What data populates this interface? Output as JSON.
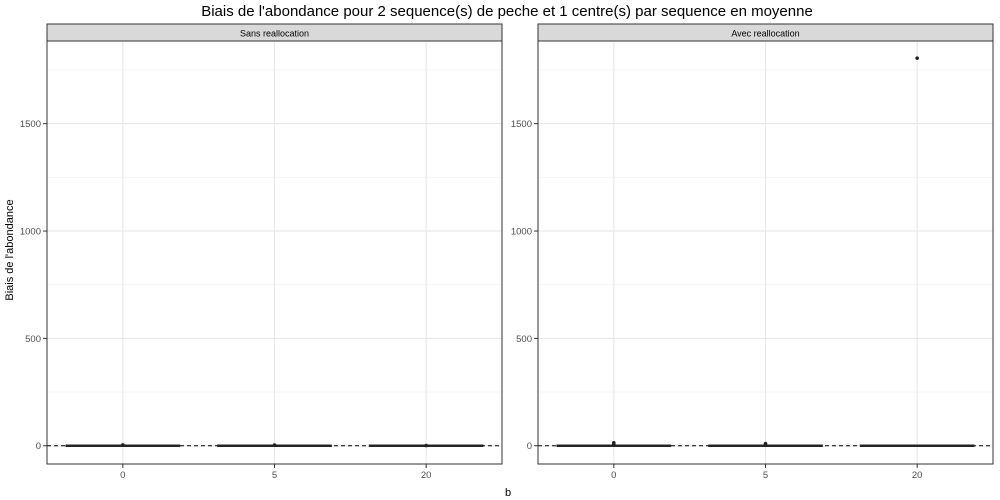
{
  "chart_data": {
    "type": "boxplot",
    "title": "Biais de l'abondance pour 2 sequence(s) de peche et 1 centre(s) par sequence en moyenne",
    "xlabel": "b",
    "ylabel": "Biais de l'abondance",
    "ylim": [
      -85,
      1885
    ],
    "yticks": [
      0,
      500,
      1000,
      1500
    ],
    "categories": [
      "0",
      "5",
      "20"
    ],
    "reference_line": {
      "y": 0,
      "style": "dashed"
    },
    "grid": true,
    "facets": [
      {
        "label": "Sans reallocation",
        "boxes": [
          {
            "category": "0",
            "q1": 0,
            "median": 0,
            "q3": 0,
            "whisker_low": 0,
            "whisker_high": 0,
            "outliers": [
              4
            ]
          },
          {
            "category": "5",
            "q1": 0,
            "median": 0,
            "q3": 0,
            "whisker_low": 0,
            "whisker_high": 0,
            "outliers": [
              3
            ]
          },
          {
            "category": "20",
            "q1": 0,
            "median": 0,
            "q3": 0,
            "whisker_low": 0,
            "whisker_high": 0,
            "outliers": [
              1
            ]
          }
        ]
      },
      {
        "label": "Avec reallocation",
        "boxes": [
          {
            "category": "0",
            "q1": 0,
            "median": 0,
            "q3": 0,
            "whisker_low": 0,
            "whisker_high": 0,
            "outliers": [
              14,
              7,
              3
            ]
          },
          {
            "category": "5",
            "q1": 0,
            "median": 0,
            "q3": 0,
            "whisker_low": 0,
            "whisker_high": 0,
            "outliers": [
              10,
              4
            ]
          },
          {
            "category": "20",
            "q1": 0,
            "median": 0,
            "q3": 0,
            "whisker_low": 0,
            "whisker_high": 0,
            "outliers": [
              1805
            ]
          }
        ]
      }
    ]
  }
}
